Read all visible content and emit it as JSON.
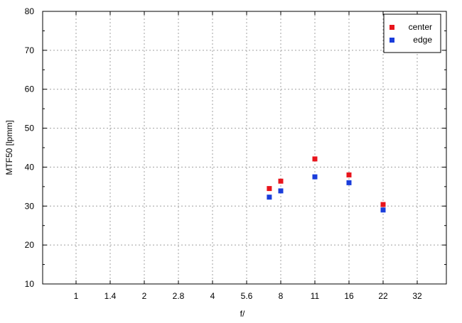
{
  "chart_data": {
    "type": "scatter",
    "title": "",
    "xlabel": "f/",
    "ylabel": "MTF50 [lpmm]",
    "x_ticks": [
      "1",
      "1.4",
      "2",
      "2.8",
      "4",
      "5.6",
      "8",
      "11",
      "16",
      "22",
      "32"
    ],
    "ylim": [
      10,
      80
    ],
    "y_ticks": [
      10,
      20,
      30,
      40,
      50,
      60,
      70,
      80
    ],
    "grid": true,
    "legend_position": "top-right",
    "series": [
      {
        "name": "center",
        "color": "#e8141c",
        "points": [
          {
            "x": "7.1",
            "y": 34.5
          },
          {
            "x": "8",
            "y": 36.4
          },
          {
            "x": "11",
            "y": 42.1
          },
          {
            "x": "16",
            "y": 38.0
          },
          {
            "x": "22",
            "y": 30.4
          }
        ]
      },
      {
        "name": "edge",
        "color": "#1a3ddb",
        "points": [
          {
            "x": "7.1",
            "y": 32.3
          },
          {
            "x": "8",
            "y": 33.9
          },
          {
            "x": "11",
            "y": 37.5
          },
          {
            "x": "16",
            "y": 36.0
          },
          {
            "x": "22",
            "y": 29.0
          }
        ]
      }
    ]
  }
}
